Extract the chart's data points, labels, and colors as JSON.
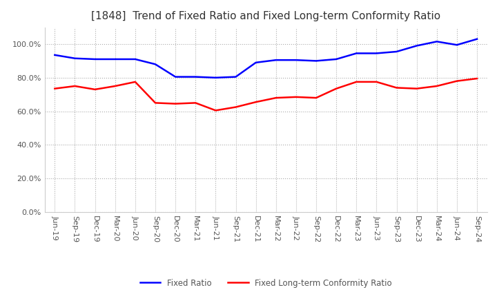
{
  "title": "[1848]  Trend of Fixed Ratio and Fixed Long-term Conformity Ratio",
  "x_labels": [
    "Jun-19",
    "Sep-19",
    "Dec-19",
    "Mar-20",
    "Jun-20",
    "Sep-20",
    "Dec-20",
    "Mar-21",
    "Jun-21",
    "Sep-21",
    "Dec-21",
    "Mar-22",
    "Jun-22",
    "Sep-22",
    "Dec-22",
    "Mar-23",
    "Jun-23",
    "Sep-23",
    "Dec-23",
    "Mar-24",
    "Jun-24",
    "Sep-24"
  ],
  "fixed_ratio": [
    93.5,
    91.5,
    91.0,
    91.0,
    91.0,
    88.0,
    80.5,
    80.5,
    80.0,
    80.5,
    89.0,
    90.5,
    90.5,
    90.0,
    91.0,
    94.5,
    94.5,
    95.5,
    99.0,
    101.5,
    99.5,
    103.0
  ],
  "fixed_longterm": [
    73.5,
    75.0,
    73.0,
    75.0,
    77.5,
    65.0,
    64.5,
    65.0,
    60.5,
    62.5,
    65.5,
    68.0,
    68.5,
    68.0,
    73.5,
    77.5,
    77.5,
    74.0,
    73.5,
    75.0,
    78.0,
    79.5
  ],
  "fixed_ratio_color": "#0000FF",
  "fixed_longterm_color": "#FF0000",
  "ylim": [
    0,
    110
  ],
  "yticks": [
    0,
    20,
    40,
    60,
    80,
    100
  ],
  "ytick_labels": [
    "0.0%",
    "20.0%",
    "40.0%",
    "60.0%",
    "80.0%",
    "100.0%"
  ],
  "line_width": 1.8,
  "background_color": "#FFFFFF",
  "grid_color": "#AAAAAA",
  "title_fontsize": 11,
  "tick_fontsize": 8,
  "legend_fontsize": 8.5
}
